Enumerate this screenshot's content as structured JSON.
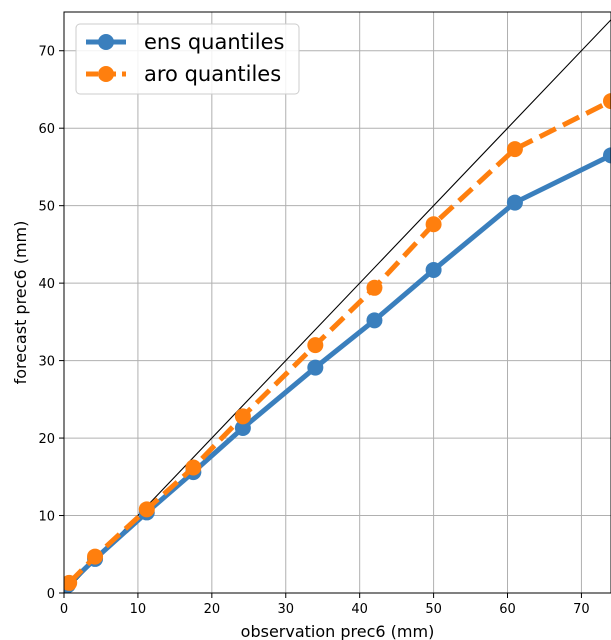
{
  "chart_data": {
    "type": "line",
    "xlabel": "observation prec6 (mm)",
    "ylabel": "forecast prec6 (mm)",
    "xlim": [
      0,
      74
    ],
    "ylim": [
      0,
      75
    ],
    "xticks": [
      0,
      10,
      20,
      30,
      40,
      50,
      60,
      70
    ],
    "yticks": [
      0,
      10,
      20,
      30,
      40,
      50,
      60,
      70
    ],
    "grid": true,
    "legend_position": "top-left",
    "diagonal_reference_line": true,
    "series": [
      {
        "name": "ens quantiles",
        "color": "#3a7fbd",
        "style": "solid",
        "points": [
          [
            0.5,
            1.0
          ],
          [
            4.2,
            4.4
          ],
          [
            11.2,
            10.4
          ],
          [
            17.5,
            15.6
          ],
          [
            24.2,
            21.3
          ],
          [
            34.0,
            29.1
          ],
          [
            42.0,
            35.2
          ],
          [
            50.0,
            41.7
          ],
          [
            61.0,
            50.4
          ],
          [
            74.0,
            56.5
          ]
        ]
      },
      {
        "name": "aro quantiles",
        "color": "#ff7f0e",
        "style": "dashed",
        "points": [
          [
            0.7,
            1.3
          ],
          [
            4.2,
            4.7
          ],
          [
            11.2,
            10.8
          ],
          [
            17.5,
            16.2
          ],
          [
            24.2,
            22.8
          ],
          [
            34.0,
            32.0
          ],
          [
            42.0,
            39.4
          ],
          [
            50.0,
            47.6
          ],
          [
            61.0,
            57.3
          ],
          [
            74.0,
            63.5
          ]
        ]
      }
    ]
  }
}
